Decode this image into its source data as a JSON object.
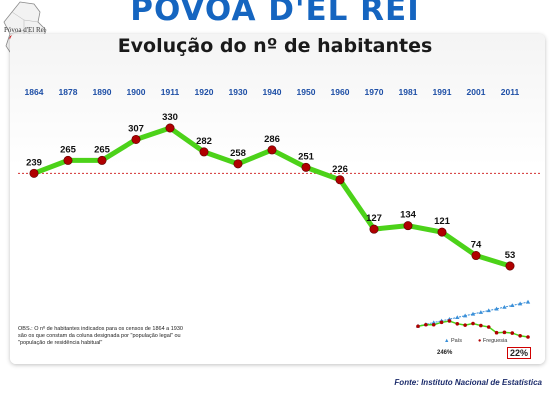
{
  "header": {
    "title": "PÓVOA D'EL REI",
    "map_label": "Póvoa d'El Rei"
  },
  "chart_data": {
    "type": "line",
    "title": "Evolução do nº de habitantes",
    "categories": [
      "1864",
      "1878",
      "1890",
      "1900",
      "1911",
      "1920",
      "1930",
      "1940",
      "1950",
      "1960",
      "1970",
      "1981",
      "1991",
      "2001",
      "2011"
    ],
    "series": [
      {
        "values": [
          239,
          265,
          265,
          307,
          330,
          282,
          258,
          286,
          251,
          226,
          127,
          134,
          121,
          74,
          53
        ]
      }
    ],
    "reference_line": 239,
    "colors": {
      "line": "#4cd219",
      "marker": "#b00000",
      "axis_label": "#1e4fa6",
      "reference": "#d23030"
    }
  },
  "inset": {
    "legend": [
      "País",
      "Freguesia"
    ],
    "country_percent": "246%",
    "parish_percent": "22%",
    "colors": {
      "country": "#3a8fd8",
      "parish": "#b00000"
    }
  },
  "note": "OBS.: O nº de habitantes indicados para os censos de 1864 a 1930 são os que constam da coluna designada por \"população legal\" ou \"população de residência habitual\"",
  "source": "Fonte: Instituto Nacional de Estatística"
}
